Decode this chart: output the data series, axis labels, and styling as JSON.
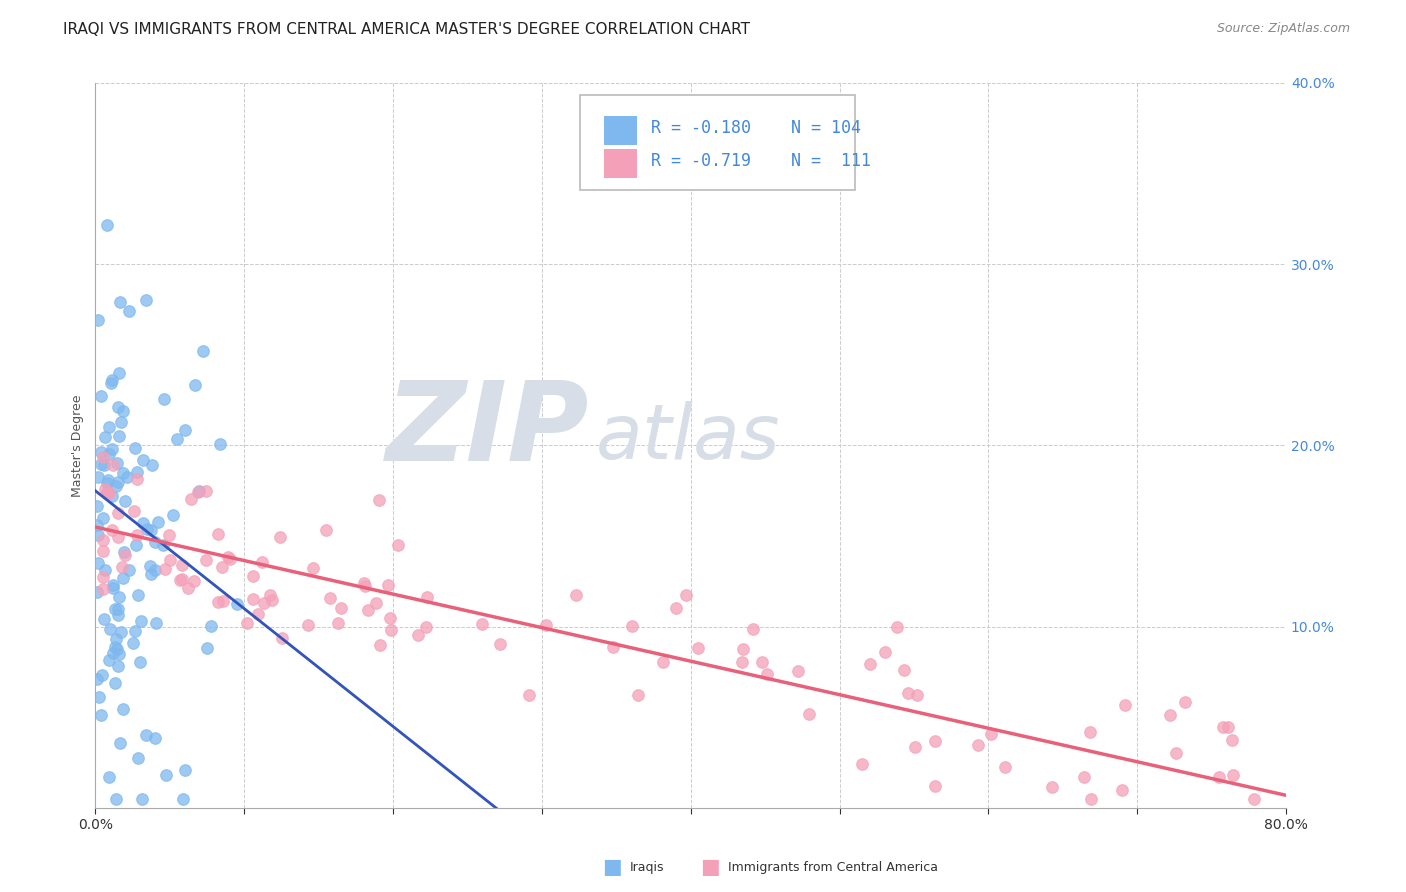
{
  "title": "IRAQI VS IMMIGRANTS FROM CENTRAL AMERICA MASTER'S DEGREE CORRELATION CHART",
  "source": "Source: ZipAtlas.com",
  "ylabel": "Master's Degree",
  "xlim": [
    0.0,
    0.8
  ],
  "ylim": [
    0.0,
    0.4
  ],
  "xticks": [
    0.0,
    0.1,
    0.2,
    0.3,
    0.4,
    0.5,
    0.6,
    0.7,
    0.8
  ],
  "yticks": [
    0.0,
    0.1,
    0.2,
    0.3,
    0.4
  ],
  "color_iraqi": "#7EB8EE",
  "color_central": "#F4A0B8",
  "color_iraqi_line": "#3355BB",
  "color_central_line": "#E8607A",
  "watermark_zip": "ZIP",
  "watermark_atlas": "atlas",
  "watermark_color": "#D8DEE8",
  "background_color": "#FFFFFF",
  "grid_color": "#CCCCCC",
  "title_fontsize": 11,
  "source_fontsize": 9,
  "axis_label_fontsize": 9,
  "tick_fontsize": 10,
  "legend_fontsize": 12,
  "iraqi_N": 104,
  "central_N": 111,
  "tick_color": "#4488DD",
  "legend_text_color": "#4488DD"
}
